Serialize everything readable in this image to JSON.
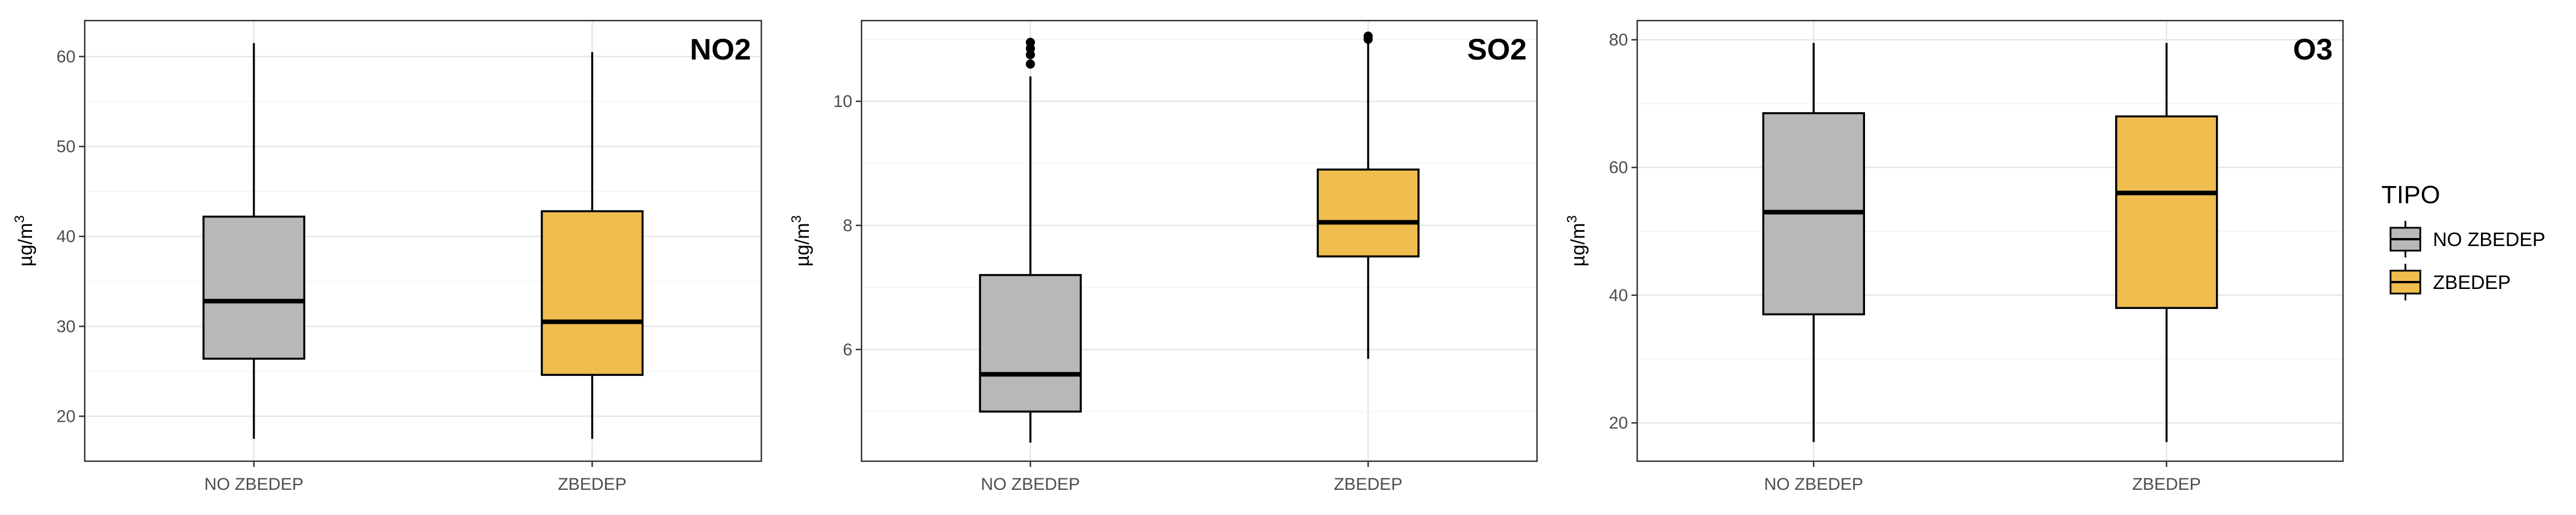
{
  "colors": {
    "NO ZBEDEP": "#b8b8b8",
    "ZBEDEP": "#efbd4e"
  },
  "legend": {
    "title": "TIPO",
    "entries": [
      "NO ZBEDEP",
      "ZBEDEP"
    ],
    "position": "right"
  },
  "chart_data": [
    {
      "type": "box",
      "title": "NO2",
      "ylabel": "µg/m³",
      "ylabel_base": "µg/m",
      "ylabel_sup": "3",
      "ylim": [
        15,
        64
      ],
      "yticks": [
        20,
        30,
        40,
        50,
        60
      ],
      "categories": [
        "NO ZBEDEP",
        "ZBEDEP"
      ],
      "boxes": [
        {
          "name": "NO ZBEDEP",
          "min": 17.5,
          "q1": 26.4,
          "median": 32.8,
          "q3": 42.2,
          "max": 61.5,
          "outliers": []
        },
        {
          "name": "ZBEDEP",
          "min": 17.5,
          "q1": 24.6,
          "median": 30.5,
          "q3": 42.8,
          "max": 60.5,
          "outliers": []
        }
      ]
    },
    {
      "type": "box",
      "title": "SO2",
      "ylabel": "µg/m³",
      "ylabel_base": "µg/m",
      "ylabel_sup": "3",
      "ylim": [
        4.2,
        11.3
      ],
      "yticks": [
        6,
        8,
        10
      ],
      "categories": [
        "NO ZBEDEP",
        "ZBEDEP"
      ],
      "boxes": [
        {
          "name": "NO ZBEDEP",
          "min": 4.5,
          "q1": 5.0,
          "median": 5.6,
          "q3": 7.2,
          "max": 10.4,
          "outliers": [
            10.6,
            10.75,
            10.85,
            10.95
          ]
        },
        {
          "name": "ZBEDEP",
          "min": 5.85,
          "q1": 7.5,
          "median": 8.05,
          "q3": 8.9,
          "max": 11.0,
          "outliers": [
            11.0,
            11.05
          ]
        }
      ]
    },
    {
      "type": "box",
      "title": "O3",
      "ylabel": "µg/m³",
      "ylabel_base": "µg/m",
      "ylabel_sup": "3",
      "ylim": [
        14,
        83
      ],
      "yticks": [
        20,
        40,
        60,
        80
      ],
      "categories": [
        "NO ZBEDEP",
        "ZBEDEP"
      ],
      "boxes": [
        {
          "name": "NO ZBEDEP",
          "min": 17.0,
          "q1": 37.0,
          "median": 53.0,
          "q3": 68.5,
          "max": 79.5,
          "outliers": []
        },
        {
          "name": "ZBEDEP",
          "min": 17.0,
          "q1": 38.0,
          "median": 56.0,
          "q3": 68.0,
          "max": 79.5,
          "outliers": []
        }
      ]
    }
  ]
}
